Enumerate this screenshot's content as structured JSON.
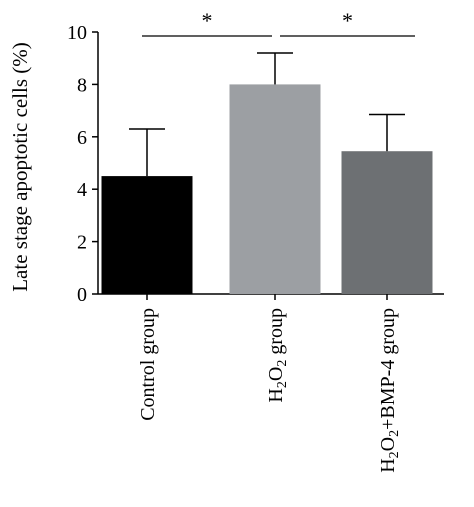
{
  "chart_data": {
    "type": "bar",
    "ylabel": "Late stage apoptotic cells (%)",
    "xlabel": "",
    "ylim": [
      0,
      10
    ],
    "yticks": [
      "0",
      "2",
      "4",
      "6",
      "8",
      "10"
    ],
    "categories": [
      {
        "label": "Control group"
      },
      {
        "label": "H",
        "sub": "2",
        "label2": "O",
        "sub2": "2",
        "label3": " group"
      },
      {
        "label": "H",
        "sub": "2",
        "label2": "O",
        "sub2": "2",
        "label3": "+BMP-4 group"
      }
    ],
    "values": [
      4.5,
      8.0,
      5.45
    ],
    "errors": [
      1.8,
      1.2,
      1.4
    ],
    "colors": [
      "#000000",
      "#9c9fa3",
      "#6d7073"
    ],
    "significance": [
      {
        "from": 0,
        "to": 1,
        "label": "*"
      },
      {
        "from": 1,
        "to": 2,
        "label": "*"
      }
    ]
  }
}
